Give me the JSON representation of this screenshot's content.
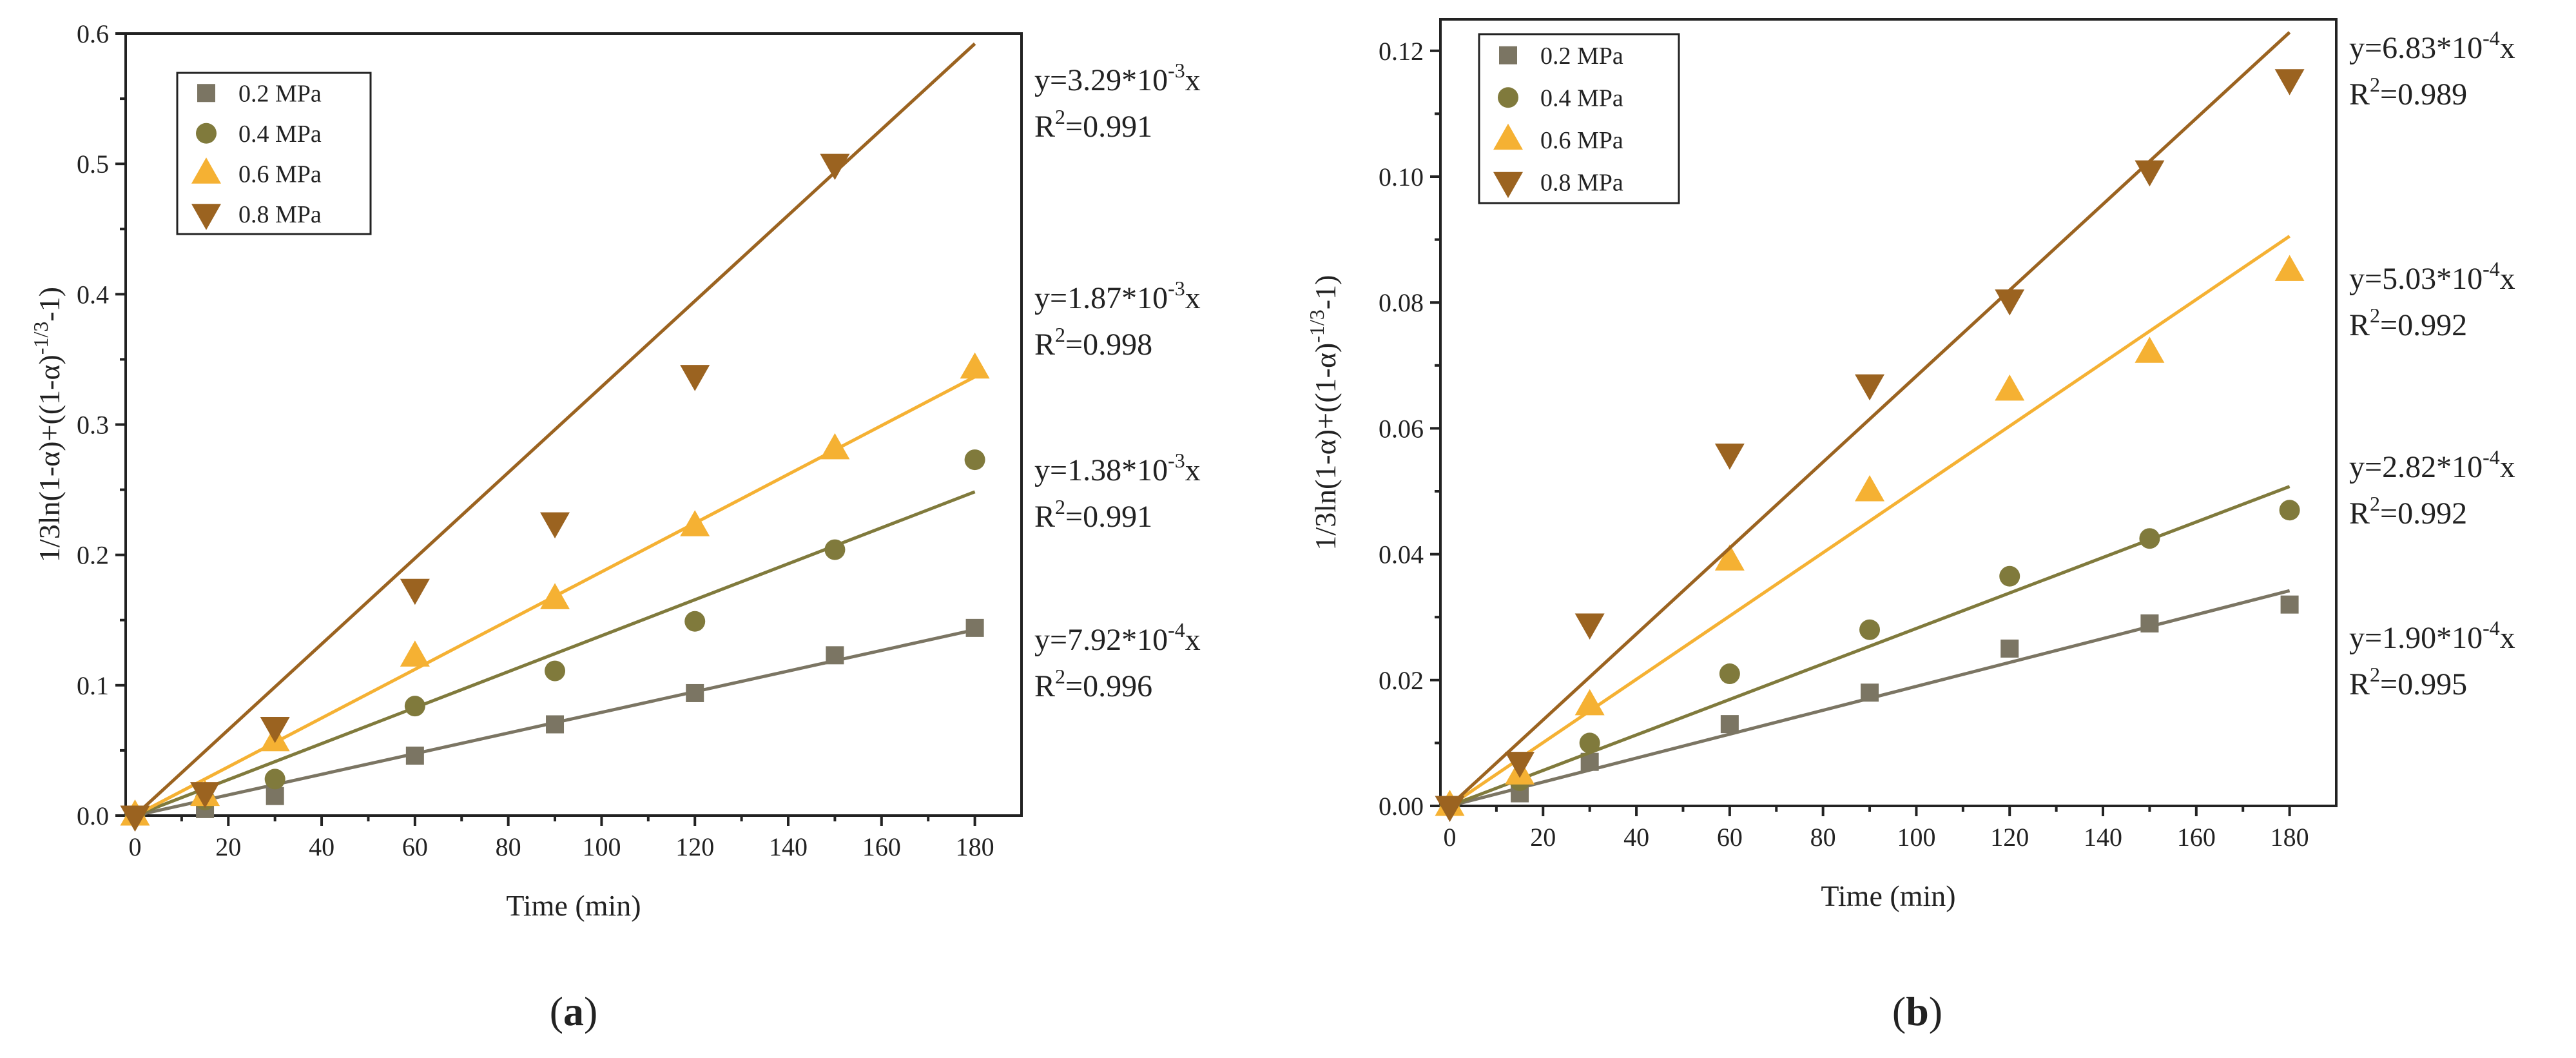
{
  "chart_data": [
    {
      "type": "scatter",
      "panel_label": "a",
      "xlabel": "Time (min)",
      "ylabel": "1/3ln(1-α)+((1-α)^{-1/3}-1)",
      "xlim": [
        -2,
        190
      ],
      "ylim": [
        0,
        0.6
      ],
      "xticks": [
        0,
        20,
        40,
        60,
        80,
        100,
        120,
        140,
        160,
        180
      ],
      "yticks": [
        0.0,
        0.1,
        0.2,
        0.3,
        0.4,
        0.5,
        0.6
      ],
      "ytick_decimals": 1,
      "legend_position": "top-left",
      "series": [
        {
          "name": "0.2 MPa",
          "marker": "square",
          "color": "#7b7563",
          "x": [
            0,
            15,
            30,
            60,
            90,
            120,
            150,
            180
          ],
          "y": [
            0,
            0.005,
            0.015,
            0.046,
            0.07,
            0.094,
            0.123,
            0.144
          ],
          "slope": 0.000792,
          "equation": {
            "prefix": "y=7.92*10",
            "exp": "-4",
            "suffix": "x"
          },
          "r2": "=0.996"
        },
        {
          "name": "0.4 MPa",
          "marker": "circle",
          "color": "#807a3c",
          "x": [
            0,
            15,
            30,
            60,
            90,
            120,
            150,
            180
          ],
          "y": [
            0,
            0.012,
            0.028,
            0.084,
            0.111,
            0.149,
            0.204,
            0.273
          ],
          "slope": 0.00138,
          "equation": {
            "prefix": "y=1.38*10",
            "exp": "-3",
            "suffix": "x"
          },
          "r2": "=0.991"
        },
        {
          "name": "0.6 MPa",
          "marker": "triangle-up",
          "color": "#f5b133",
          "x": [
            0,
            15,
            30,
            60,
            90,
            120,
            150,
            180
          ],
          "y": [
            0,
            0.015,
            0.057,
            0.122,
            0.166,
            0.222,
            0.281,
            0.343
          ],
          "slope": 0.00187,
          "equation": {
            "prefix": "y=1.87*10",
            "exp": "-3",
            "suffix": "x"
          },
          "r2": "=0.998"
        },
        {
          "name": "0.8 MPa",
          "marker": "triangle-down",
          "color": "#9b6320",
          "x": [
            0,
            15,
            30,
            60,
            90,
            120,
            150,
            180
          ],
          "y": [
            0,
            0.018,
            0.068,
            0.174,
            0.225,
            0.338,
            0.5,
            null
          ],
          "slope": 0.00329,
          "equation": {
            "prefix": "y=3.29*10",
            "exp": "-3",
            "suffix": "x"
          },
          "r2": "=0.991"
        }
      ]
    },
    {
      "type": "scatter",
      "panel_label": "b",
      "xlabel": "Time (min)",
      "ylabel": "1/3ln(1-α)+((1-α)^{-1/3}-1)",
      "xlim": [
        -2,
        190
      ],
      "ylim": [
        0,
        0.125
      ],
      "xticks": [
        0,
        20,
        40,
        60,
        80,
        100,
        120,
        140,
        160,
        180
      ],
      "yticks": [
        0.0,
        0.02,
        0.04,
        0.06,
        0.08,
        0.1,
        0.12
      ],
      "ytick_decimals": 2,
      "legend_position": "top-left",
      "series": [
        {
          "name": "0.2 MPa",
          "marker": "square",
          "color": "#7b7563",
          "x": [
            0,
            15,
            30,
            60,
            90,
            120,
            150,
            180
          ],
          "y": [
            0,
            0.002,
            0.007,
            0.013,
            0.018,
            0.025,
            0.029,
            0.032
          ],
          "slope": 0.00019,
          "equation": {
            "prefix": "y=1.90*10",
            "exp": "-4",
            "suffix": "x"
          },
          "r2": "=0.995"
        },
        {
          "name": "0.4 MPa",
          "marker": "circle",
          "color": "#807a3c",
          "x": [
            0,
            15,
            30,
            60,
            90,
            120,
            150,
            180
          ],
          "y": [
            0,
            0.004,
            0.01,
            0.021,
            0.028,
            0.0365,
            0.0425,
            0.047
          ],
          "slope": 0.000282,
          "equation": {
            "prefix": "y=2.82*10",
            "exp": "-4",
            "suffix": "x"
          },
          "r2": "=0.992"
        },
        {
          "name": "0.6 MPa",
          "marker": "triangle-up",
          "color": "#f5b133",
          "x": [
            0,
            15,
            30,
            60,
            90,
            120,
            150,
            180
          ],
          "y": [
            0,
            0.005,
            0.016,
            0.039,
            0.05,
            0.066,
            0.072,
            0.085
          ],
          "slope": 0.000503,
          "equation": {
            "prefix": "y=5.03*10",
            "exp": "-4",
            "suffix": "x"
          },
          "r2": "=0.992"
        },
        {
          "name": "0.8 MPa",
          "marker": "triangle-down",
          "color": "#9b6320",
          "x": [
            0,
            15,
            30,
            60,
            90,
            120,
            150,
            180
          ],
          "y": [
            0,
            0.007,
            0.029,
            0.056,
            0.067,
            0.0805,
            0.101,
            0.1155
          ],
          "slope": 0.000683,
          "equation": {
            "prefix": "y=6.83*10",
            "exp": "-4",
            "suffix": "x"
          },
          "r2": "=0.989"
        }
      ]
    }
  ]
}
